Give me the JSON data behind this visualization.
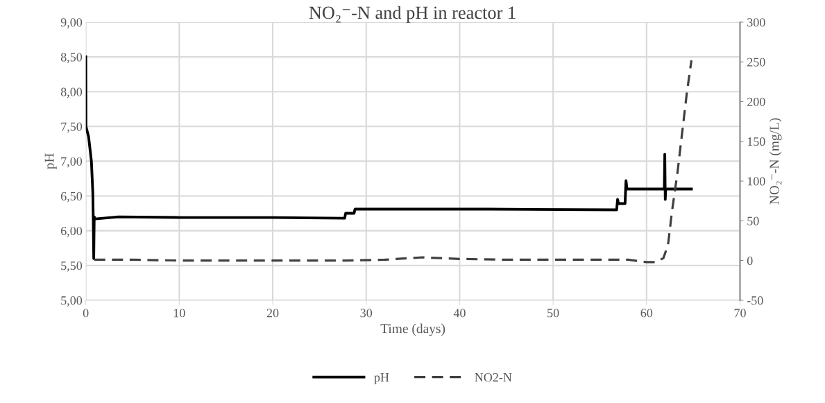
{
  "chart_data": {
    "type": "line",
    "title": "NO₂⁻-N and pH in reactor 1",
    "xlabel": "Time (days)",
    "ylabel": "pH",
    "y2label": "NO₂⁻-N (mg/L)",
    "xlim": [
      0,
      70
    ],
    "xticks": [
      0,
      10,
      20,
      30,
      40,
      50,
      60,
      70
    ],
    "ylim": [
      5,
      9
    ],
    "yticks": [
      {
        "value": 5,
        "label": "5,00"
      },
      {
        "value": 5.5,
        "label": "5,50"
      },
      {
        "value": 6,
        "label": "6,00"
      },
      {
        "value": 6.5,
        "label": "6,50"
      },
      {
        "value": 7,
        "label": "7,00"
      },
      {
        "value": 7.5,
        "label": "7,50"
      },
      {
        "value": 8,
        "label": "8,00"
      },
      {
        "value": 8.5,
        "label": "8,50"
      },
      {
        "value": 9,
        "label": "9,00"
      }
    ],
    "y2lim": [
      -50,
      300
    ],
    "y2ticks": [
      -50,
      0,
      50,
      100,
      150,
      200,
      250,
      300
    ],
    "grid": true,
    "legend": "bottom",
    "series": [
      {
        "name": "pH",
        "color": "#000000",
        "line_style": "solid",
        "x": [
          0,
          0.02,
          0.3,
          0.6,
          0.75,
          0.8,
          0.85,
          0.9,
          1,
          3.5,
          10,
          20,
          27.7,
          27.8,
          28.7,
          28.8,
          43,
          56.8,
          56.9,
          57,
          57.7,
          57.8,
          57.9,
          61.9,
          61.95,
          62,
          62.05,
          64.8
        ],
        "values": [
          8.5,
          7.5,
          7.35,
          7.0,
          6.55,
          6.15,
          5.6,
          6.2,
          6.17,
          6.2,
          6.19,
          6.19,
          6.18,
          6.25,
          6.25,
          6.31,
          6.31,
          6.3,
          6.45,
          6.39,
          6.39,
          6.72,
          6.6,
          6.6,
          7.1,
          6.45,
          6.6,
          6.6
        ]
      },
      {
        "name": "NO2-N",
        "color": "#404040",
        "line_style": "dashed",
        "axis": "y2",
        "x": [
          0.9,
          5,
          10,
          20,
          28,
          32,
          36,
          40,
          45,
          50,
          55,
          58,
          60,
          61,
          61.8,
          62.3,
          62.7,
          63.3,
          63.8,
          64.3,
          64.8
        ],
        "values": [
          1,
          1,
          0,
          0,
          0,
          1,
          4,
          2,
          1,
          1,
          1,
          1,
          -2,
          -2,
          3,
          20,
          60,
          110,
          160,
          210,
          252
        ]
      }
    ]
  }
}
